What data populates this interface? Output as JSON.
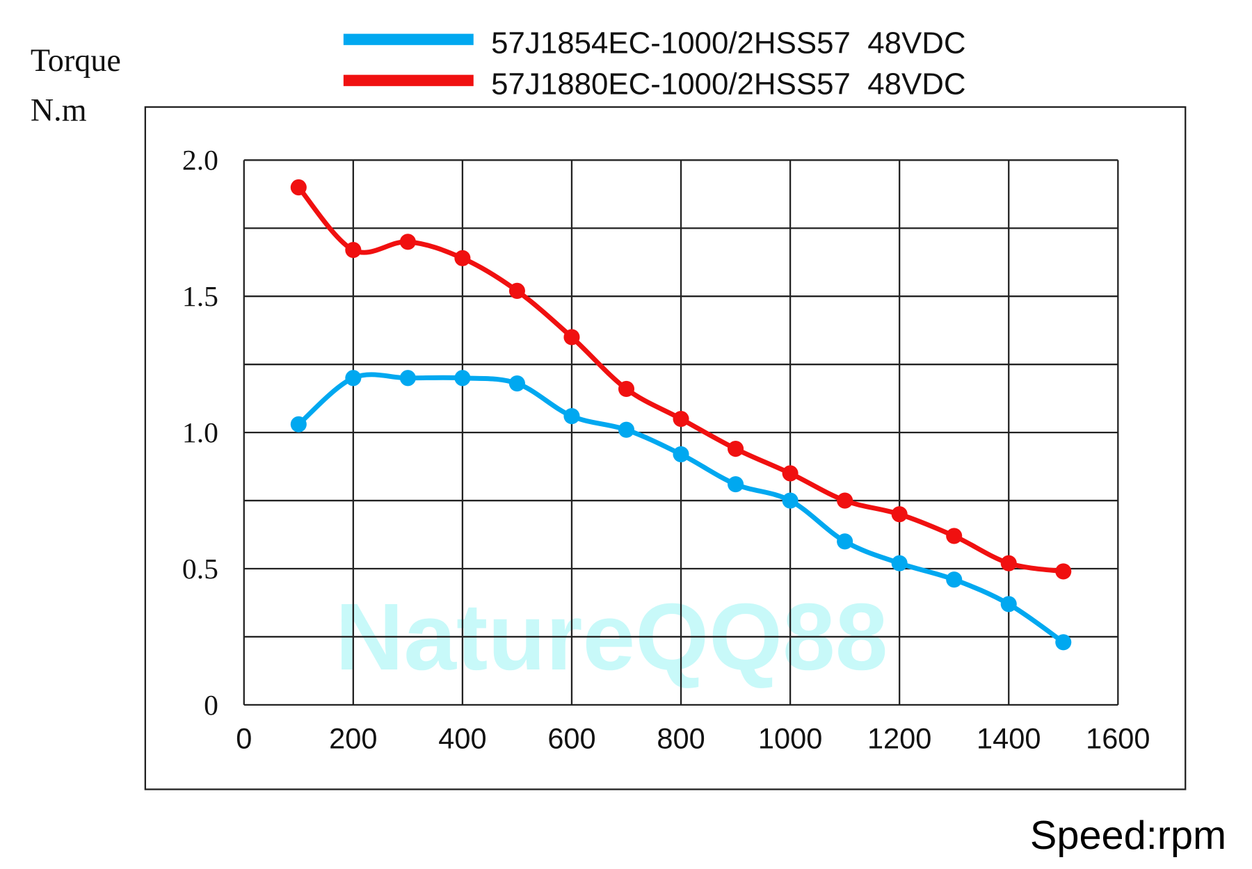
{
  "chart_data": {
    "type": "line",
    "ylabel_line1": "Torque",
    "ylabel_line2": "N.m",
    "xlabel": "Speed:rpm",
    "watermark": "NatureQQ88",
    "xlim": [
      0,
      1600
    ],
    "ylim": [
      0,
      2.0
    ],
    "grid": true,
    "legend_position": "top-center",
    "x_ticks": [
      "0",
      "200",
      "400",
      "600",
      "800",
      "1000",
      "1200",
      "1400",
      "1600"
    ],
    "y_ticks": [
      "0",
      "0.5",
      "1.0",
      "1.5",
      "2.0"
    ],
    "x": [
      100,
      200,
      300,
      400,
      500,
      600,
      700,
      800,
      900,
      1000,
      1100,
      1200,
      1300,
      1400,
      1500
    ],
    "series": [
      {
        "name": "57J1854EC-1000/2HSS57  48VDC",
        "color": "#00a8f0",
        "values": [
          1.03,
          1.2,
          1.2,
          1.2,
          1.18,
          1.06,
          1.01,
          0.92,
          0.81,
          0.75,
          0.6,
          0.52,
          0.46,
          0.37,
          0.23
        ]
      },
      {
        "name": "57J1880EC-1000/2HSS57  48VDC",
        "color": "#f01010",
        "values": [
          1.9,
          1.67,
          1.7,
          1.64,
          1.52,
          1.35,
          1.16,
          1.05,
          0.94,
          0.85,
          0.75,
          0.7,
          0.62,
          0.52,
          0.49
        ]
      }
    ]
  }
}
